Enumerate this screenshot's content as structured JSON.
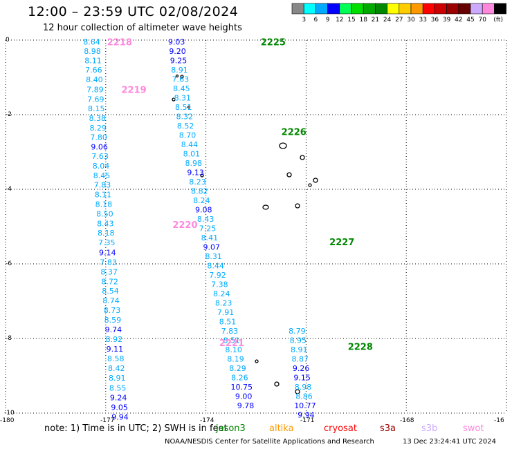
{
  "header": {
    "title": "12:00 – 23:59 UTC 02/08/2024",
    "subtitle": "12 hour collection of altimeter wave heights"
  },
  "color_scale": {
    "unit": "(ft)",
    "bins": [
      {
        "color": "#888888",
        "label": ""
      },
      {
        "color": "#00ffff",
        "label": "3"
      },
      {
        "color": "#00aaff",
        "label": "6"
      },
      {
        "color": "#0000ff",
        "label": "9"
      },
      {
        "color": "#00ff55",
        "label": "12"
      },
      {
        "color": "#00dd00",
        "label": "15"
      },
      {
        "color": "#00aa00",
        "label": "18"
      },
      {
        "color": "#008800",
        "label": "21"
      },
      {
        "color": "#ffff00",
        "label": "24"
      },
      {
        "color": "#ffcc00",
        "label": "27"
      },
      {
        "color": "#ff9900",
        "label": "30"
      },
      {
        "color": "#ff0000",
        "label": "33"
      },
      {
        "color": "#cc0000",
        "label": "36"
      },
      {
        "color": "#990000",
        "label": "39"
      },
      {
        "color": "#660000",
        "label": "42"
      },
      {
        "color": "#ccaaff",
        "label": "45"
      },
      {
        "color": "#ff88dd",
        "label": "70"
      },
      {
        "color": "#000000",
        "label": ""
      }
    ]
  },
  "axes": {
    "x_ticks": [
      "-180",
      "-177",
      "-174",
      "-171",
      "-168",
      "-16"
    ],
    "y_ticks": [
      "0",
      "-2",
      "-4",
      "-6",
      "-8",
      "-10"
    ]
  },
  "pass_labels": [
    {
      "text": "2218",
      "lon": -176.96,
      "lat": -0.05,
      "color": "#ff88dd"
    },
    {
      "text": "2219",
      "lon": -176.53,
      "lat": -1.32,
      "color": "#ff88dd"
    },
    {
      "text": "2220",
      "lon": -175.0,
      "lat": -4.94,
      "color": "#ff88dd"
    },
    {
      "text": "2221",
      "lon": -173.6,
      "lat": -8.11,
      "color": "#ff88dd"
    },
    {
      "text": "2225",
      "lon": -172.36,
      "lat": -0.05,
      "color": "#008800"
    },
    {
      "text": "2226",
      "lon": -171.74,
      "lat": -2.45,
      "color": "#008800"
    },
    {
      "text": "2227",
      "lon": -170.3,
      "lat": -5.41,
      "color": "#008800"
    },
    {
      "text": "2228",
      "lon": -169.75,
      "lat": -8.21,
      "color": "#008800"
    }
  ],
  "tracks": [
    {
      "name": "2218-2221",
      "points": [
        {
          "lon": -177.42,
          "lat": -0.05,
          "value": "8.64",
          "color": "#00aaff"
        },
        {
          "lon": -177.4,
          "lat": -0.3,
          "value": "8.98",
          "color": "#00aaff"
        },
        {
          "lon": -177.38,
          "lat": -0.55,
          "value": "8.11",
          "color": "#00aaff"
        },
        {
          "lon": -177.36,
          "lat": -0.8,
          "value": "7.66",
          "color": "#00aaff"
        },
        {
          "lon": -177.34,
          "lat": -1.06,
          "value": "8.40",
          "color": "#00aaff"
        },
        {
          "lon": -177.32,
          "lat": -1.32,
          "value": "7.89",
          "color": "#00aaff"
        },
        {
          "lon": -177.3,
          "lat": -1.58,
          "value": "7.69",
          "color": "#00aaff"
        },
        {
          "lon": -177.28,
          "lat": -1.83,
          "value": "8.15",
          "color": "#00aaff"
        },
        {
          "lon": -177.25,
          "lat": -2.09,
          "value": "8.38",
          "color": "#00aaff"
        },
        {
          "lon": -177.23,
          "lat": -2.35,
          "value": "8.29",
          "color": "#00aaff"
        },
        {
          "lon": -177.21,
          "lat": -2.6,
          "value": "7.80",
          "color": "#00aaff"
        },
        {
          "lon": -177.19,
          "lat": -2.86,
          "value": "9.06",
          "color": "#0000ff"
        },
        {
          "lon": -177.17,
          "lat": -3.11,
          "value": "7.63",
          "color": "#00aaff"
        },
        {
          "lon": -177.14,
          "lat": -3.37,
          "value": "8.04",
          "color": "#00aaff"
        },
        {
          "lon": -177.12,
          "lat": -3.63,
          "value": "8.45",
          "color": "#00aaff"
        },
        {
          "lon": -177.1,
          "lat": -3.88,
          "value": "7.83",
          "color": "#00aaff"
        },
        {
          "lon": -177.08,
          "lat": -4.14,
          "value": "8.11",
          "color": "#00aaff"
        },
        {
          "lon": -177.06,
          "lat": -4.4,
          "value": "8.18",
          "color": "#00aaff"
        },
        {
          "lon": -177.03,
          "lat": -4.66,
          "value": "8.50",
          "color": "#00aaff"
        },
        {
          "lon": -177.01,
          "lat": -4.92,
          "value": "8.43",
          "color": "#00aaff"
        },
        {
          "lon": -176.99,
          "lat": -5.17,
          "value": "8.18",
          "color": "#00aaff"
        },
        {
          "lon": -176.97,
          "lat": -5.43,
          "value": "7.35",
          "color": "#00aaff"
        },
        {
          "lon": -176.95,
          "lat": -5.69,
          "value": "9.14",
          "color": "#0000ff"
        },
        {
          "lon": -176.92,
          "lat": -5.95,
          "value": "7.83",
          "color": "#00aaff"
        },
        {
          "lon": -176.9,
          "lat": -6.21,
          "value": "8.37",
          "color": "#00aaff"
        },
        {
          "lon": -176.88,
          "lat": -6.47,
          "value": "8.72",
          "color": "#00aaff"
        },
        {
          "lon": -176.86,
          "lat": -6.72,
          "value": "8.54",
          "color": "#00aaff"
        },
        {
          "lon": -176.84,
          "lat": -6.98,
          "value": "8.74",
          "color": "#00aaff"
        },
        {
          "lon": -176.81,
          "lat": -7.24,
          "value": "8.73",
          "color": "#00aaff"
        },
        {
          "lon": -176.79,
          "lat": -7.5,
          "value": "8.59",
          "color": "#00aaff"
        },
        {
          "lon": -176.77,
          "lat": -7.76,
          "value": "9.74",
          "color": "#0000ff"
        },
        {
          "lon": -176.75,
          "lat": -8.02,
          "value": "8.92",
          "color": "#00aaff"
        },
        {
          "lon": -176.73,
          "lat": -8.28,
          "value": "9.11",
          "color": "#0000ff"
        },
        {
          "lon": -176.7,
          "lat": -8.54,
          "value": "8.58",
          "color": "#00aaff"
        },
        {
          "lon": -176.68,
          "lat": -8.8,
          "value": "8.42",
          "color": "#00aaff"
        },
        {
          "lon": -176.66,
          "lat": -9.06,
          "value": "8.91",
          "color": "#00aaff"
        },
        {
          "lon": -176.64,
          "lat": -9.32,
          "value": "8.55",
          "color": "#00aaff"
        },
        {
          "lon": -176.62,
          "lat": -9.58,
          "value": "9.24",
          "color": "#0000ff"
        },
        {
          "lon": -176.59,
          "lat": -9.84,
          "value": "9.05",
          "color": "#0000ff"
        },
        {
          "lon": -176.57,
          "lat": -10.1,
          "value": "9.94",
          "color": "#0000ff"
        }
      ]
    },
    {
      "name": "2225-2228",
      "points": [
        {
          "lon": -174.88,
          "lat": -0.05,
          "value": "9.03",
          "color": "#0000ff"
        },
        {
          "lon": -174.85,
          "lat": -0.3,
          "value": "9.20",
          "color": "#0000ff"
        },
        {
          "lon": -174.82,
          "lat": -0.55,
          "value": "9.25",
          "color": "#0000ff"
        },
        {
          "lon": -174.79,
          "lat": -0.8,
          "value": "8.91",
          "color": "#00aaff"
        },
        {
          "lon": -174.76,
          "lat": -1.05,
          "value": "7.63",
          "color": "#00aaff"
        },
        {
          "lon": -174.73,
          "lat": -1.3,
          "value": "8.45",
          "color": "#00aaff"
        },
        {
          "lon": -174.7,
          "lat": -1.55,
          "value": "8.31",
          "color": "#00aaff"
        },
        {
          "lon": -174.67,
          "lat": -1.8,
          "value": "8.51",
          "color": "#00aaff"
        },
        {
          "lon": -174.64,
          "lat": -2.05,
          "value": "8.32",
          "color": "#00aaff"
        },
        {
          "lon": -174.61,
          "lat": -2.3,
          "value": "8.52",
          "color": "#00aaff"
        },
        {
          "lon": -174.55,
          "lat": -2.55,
          "value": "8.70",
          "color": "#00aaff"
        },
        {
          "lon": -174.49,
          "lat": -2.8,
          "value": "8.44",
          "color": "#00aaff"
        },
        {
          "lon": -174.43,
          "lat": -3.05,
          "value": "8.01",
          "color": "#00aaff"
        },
        {
          "lon": -174.37,
          "lat": -3.3,
          "value": "8.98",
          "color": "#00aaff"
        },
        {
          "lon": -174.31,
          "lat": -3.55,
          "value": "9.13",
          "color": "#0000ff"
        },
        {
          "lon": -174.25,
          "lat": -3.8,
          "value": "8.23",
          "color": "#00aaff"
        },
        {
          "lon": -174.19,
          "lat": -4.05,
          "value": "8.82",
          "color": "#00aaff"
        },
        {
          "lon": -174.13,
          "lat": -4.3,
          "value": "8.24",
          "color": "#00aaff"
        },
        {
          "lon": -174.07,
          "lat": -4.55,
          "value": "9.08",
          "color": "#0000ff"
        },
        {
          "lon": -174.01,
          "lat": -4.8,
          "value": "8.43",
          "color": "#00aaff"
        },
        {
          "lon": -173.95,
          "lat": -5.05,
          "value": "7.25",
          "color": "#00aaff"
        },
        {
          "lon": -173.89,
          "lat": -5.3,
          "value": "8.41",
          "color": "#00aaff"
        },
        {
          "lon": -173.83,
          "lat": -5.55,
          "value": "9.07",
          "color": "#0000ff"
        },
        {
          "lon": -173.77,
          "lat": -5.8,
          "value": "8.31",
          "color": "#00aaff"
        },
        {
          "lon": -173.71,
          "lat": -6.05,
          "value": "8.44",
          "color": "#00aaff"
        },
        {
          "lon": -173.65,
          "lat": -6.3,
          "value": "7.92",
          "color": "#00aaff"
        },
        {
          "lon": -173.59,
          "lat": -6.55,
          "value": "7.38",
          "color": "#00aaff"
        },
        {
          "lon": -173.53,
          "lat": -6.8,
          "value": "8.24",
          "color": "#00aaff"
        },
        {
          "lon": -173.47,
          "lat": -7.05,
          "value": "8.23",
          "color": "#00aaff"
        },
        {
          "lon": -173.41,
          "lat": -7.3,
          "value": "7.91",
          "color": "#00aaff"
        },
        {
          "lon": -173.35,
          "lat": -7.55,
          "value": "8.51",
          "color": "#00aaff"
        },
        {
          "lon": -173.29,
          "lat": -7.8,
          "value": "7.83",
          "color": "#00aaff"
        },
        {
          "lon": -173.23,
          "lat": -8.05,
          "value": "8.51",
          "color": "#00aaff"
        },
        {
          "lon": -173.17,
          "lat": -8.3,
          "value": "8.10",
          "color": "#00aaff"
        },
        {
          "lon": -173.11,
          "lat": -8.55,
          "value": "8.19",
          "color": "#00aaff"
        },
        {
          "lon": -173.05,
          "lat": -8.8,
          "value": "8.29",
          "color": "#00aaff"
        },
        {
          "lon": -172.99,
          "lat": -9.05,
          "value": "8.26",
          "color": "#00aaff"
        },
        {
          "lon": -172.93,
          "lat": -9.3,
          "value": "10.75",
          "color": "#0000ff"
        },
        {
          "lon": -172.87,
          "lat": -9.55,
          "value": "9.00",
          "color": "#0000ff"
        },
        {
          "lon": -172.81,
          "lat": -9.8,
          "value": "9.78",
          "color": "#0000ff"
        }
      ]
    },
    {
      "name": "2228-lower",
      "points": [
        {
          "lon": -171.27,
          "lat": -7.8,
          "value": "8.79",
          "color": "#00aaff"
        },
        {
          "lon": -171.24,
          "lat": -8.05,
          "value": "8.95",
          "color": "#00aaff"
        },
        {
          "lon": -171.21,
          "lat": -8.3,
          "value": "8.91",
          "color": "#00aaff"
        },
        {
          "lon": -171.18,
          "lat": -8.55,
          "value": "8.87",
          "color": "#00aaff"
        },
        {
          "lon": -171.15,
          "lat": -8.8,
          "value": "9.26",
          "color": "#0000ff"
        },
        {
          "lon": -171.12,
          "lat": -9.05,
          "value": "9.15",
          "color": "#0000ff"
        },
        {
          "lon": -171.09,
          "lat": -9.3,
          "value": "8.98",
          "color": "#00aaff"
        },
        {
          "lon": -171.06,
          "lat": -9.55,
          "value": "8.86",
          "color": "#00aaff"
        },
        {
          "lon": -171.03,
          "lat": -9.8,
          "value": "10.77",
          "color": "#0000ff"
        },
        {
          "lon": -171.0,
          "lat": -10.05,
          "value": "9.94",
          "color": "#0000ff"
        }
      ]
    }
  ],
  "footer": {
    "note": "note:  1) Time is in UTC; 2) SWH is in feet",
    "satellites": [
      {
        "name": "jason3",
        "color": "#008800"
      },
      {
        "name": "altika",
        "color": "#ff9900"
      },
      {
        "name": "cryosat",
        "color": "#ff0000"
      },
      {
        "name": "s3a",
        "color": "#990000"
      },
      {
        "name": "s3b",
        "color": "#ccaaff"
      },
      {
        "name": "swot",
        "color": "#ff88dd"
      }
    ],
    "credit": "NOAA/NESDIS Center for Satellite Applications and Research",
    "timestamp": "13 Dec 23:24:41 UTC 2024"
  }
}
